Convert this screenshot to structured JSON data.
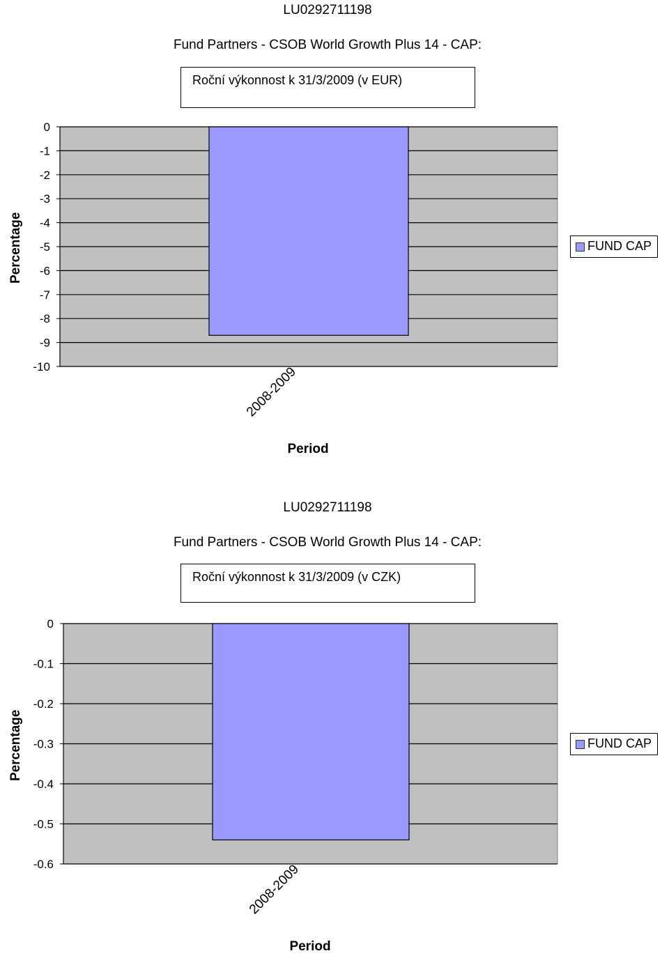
{
  "charts": [
    {
      "code": "LU0292711198",
      "fund_name": "Fund Partners - CSOB World Growth Plus 14 - CAP:",
      "subtitle": "Roční výkonnost k 31/3/2009 (v EUR)",
      "legend_label": "FUND CAP"
    },
    {
      "code": "LU0292711198",
      "fund_name": "Fund Partners - CSOB World Growth Plus 14 - CAP:",
      "subtitle": "Roční výkonnost k 31/3/2009 (v CZK)",
      "legend_label": "FUND CAP"
    }
  ],
  "chart_data": [
    {
      "type": "bar",
      "title": "Roční výkonnost k 31/3/2009 (v EUR)",
      "categories": [
        "2008-2009"
      ],
      "series": [
        {
          "name": "FUND CAP",
          "values": [
            -8.7
          ]
        }
      ],
      "xlabel": "Period",
      "ylabel": "Percentage",
      "ylim": [
        -10,
        0
      ],
      "ytick_step": 1,
      "ytick_labels": [
        "0",
        "-1",
        "-2",
        "-3",
        "-4",
        "-5",
        "-6",
        "-7",
        "-8",
        "-9",
        "-10"
      ],
      "grid": true,
      "legend": "right",
      "bar_color": "#9999ff",
      "plot_bg": "#c0c0c0"
    },
    {
      "type": "bar",
      "title": "Roční výkonnost k 31/3/2009 (v CZK)",
      "categories": [
        "2008-2009"
      ],
      "series": [
        {
          "name": "FUND CAP",
          "values": [
            -0.54
          ]
        }
      ],
      "xlabel": "Period",
      "ylabel": "Percentage",
      "ylim": [
        -0.6,
        0
      ],
      "ytick_step": 0.1,
      "ytick_labels": [
        "0",
        "-0.1",
        "-0.2",
        "-0.3",
        "-0.4",
        "-0.5",
        "-0.6"
      ],
      "grid": true,
      "legend": "right",
      "bar_color": "#9999ff",
      "plot_bg": "#c0c0c0"
    }
  ]
}
